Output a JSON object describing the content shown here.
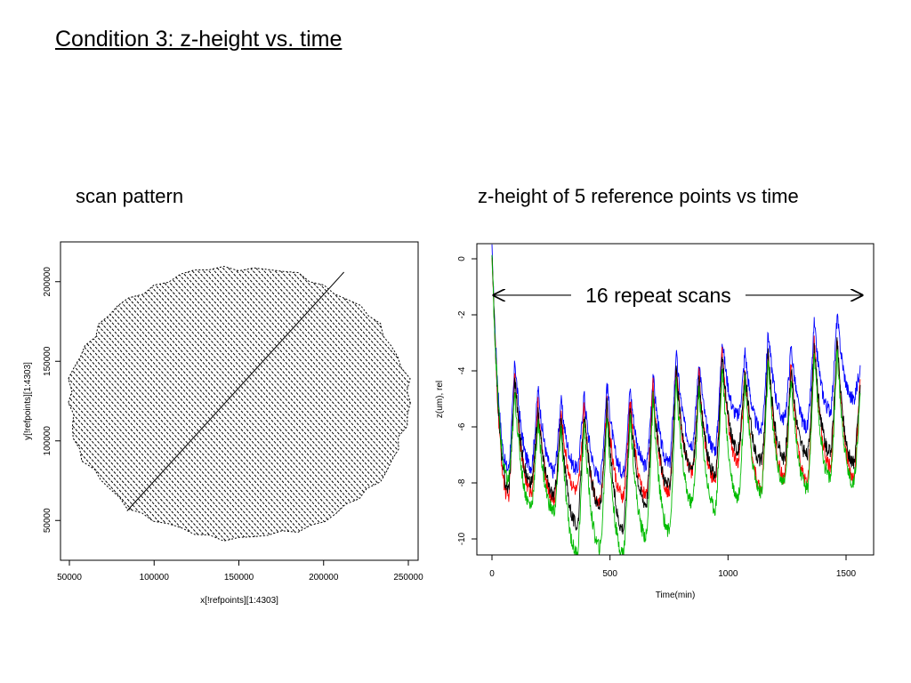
{
  "slide": {
    "title": "Condition 3: z-height vs. time"
  },
  "chart_data": [
    {
      "type": "scatter",
      "title": "scan pattern",
      "xlabel": "x[!refpoints][1:4303]",
      "ylabel": "y[!refpoints][1:4303]",
      "xlim": [
        50000,
        250000
      ],
      "ylim": [
        25000,
        225000
      ],
      "xticks": [
        50000,
        100000,
        150000,
        200000,
        250000
      ],
      "yticks": [
        50000,
        100000,
        150000,
        200000
      ],
      "grid": false,
      "description_points": "dense diagonal raster scan filling a disc; one long diagonal line connects the reference points",
      "boundary": {
        "center": [
          150000,
          124000
        ],
        "radius": 100000
      },
      "reference_line": {
        "x": [
          84000,
          212000
        ],
        "y": [
          56000,
          206000
        ]
      }
    },
    {
      "type": "line",
      "title": "z-height of 5 reference points vs time",
      "xlabel": "Time(min)",
      "ylabel": "z(um), rel",
      "xlim": [
        -60,
        1610
      ],
      "ylim": [
        -10.5,
        0.5
      ],
      "xticks": [
        0,
        500,
        1000,
        1500
      ],
      "yticks": [
        0,
        -2,
        -4,
        -6,
        -8,
        -10
      ],
      "grid": false,
      "annotation": {
        "text": "16 repeat scans",
        "arrow_from": 0,
        "arrow_to": 1560,
        "y": -1.3
      },
      "peak_times": [
        0,
        97,
        195,
        292,
        390,
        487,
        585,
        682,
        780,
        877,
        975,
        1072,
        1170,
        1267,
        1365,
        1462,
        1560
      ],
      "series": [
        {
          "color": "#0000ff",
          "peaks": [
            0.3,
            -3.6,
            -4.6,
            -5.0,
            -4.8,
            -4.4,
            -4.6,
            -4.1,
            -3.3,
            -3.6,
            -2.8,
            -3.3,
            -2.6,
            -3.1,
            -2.3,
            -2.0,
            -3.8
          ],
          "troughs": [
            -7.5,
            -7.4,
            -7.6,
            -7.5,
            -7.8,
            -7.6,
            -7.4,
            -7.3,
            -6.6,
            -6.8,
            -5.6,
            -6.1,
            -5.7,
            -6.0,
            -5.4,
            -5.0
          ]
        },
        {
          "color": "#ff0000",
          "peaks": [
            0.25,
            -4.0,
            -5.2,
            -5.5,
            -5.3,
            -5.0,
            -5.0,
            -4.5,
            -3.8,
            -4.1,
            -3.3,
            -3.8,
            -3.2,
            -3.7,
            -2.9,
            -2.7,
            -4.3
          ],
          "troughs": [
            -8.5,
            -8.3,
            -8.6,
            -8.3,
            -8.7,
            -8.5,
            -8.4,
            -8.3,
            -7.6,
            -7.9,
            -7.2,
            -8.2,
            -7.8,
            -8.0,
            -7.4,
            -7.8
          ]
        },
        {
          "color": "#000000",
          "peaks": [
            0.2,
            -4.2,
            -5.4,
            -5.7,
            -5.5,
            -5.2,
            -5.2,
            -4.7,
            -4.0,
            -4.3,
            -3.5,
            -4.0,
            -3.4,
            -3.9,
            -3.1,
            -2.9,
            -4.5
          ],
          "troughs": [
            -8.2,
            -8.0,
            -8.4,
            -9.5,
            -8.8,
            -9.6,
            -8.7,
            -8.1,
            -7.5,
            -7.7,
            -6.8,
            -7.2,
            -7.1,
            -7.0,
            -6.9,
            -7.3
          ]
        },
        {
          "color": "#00bb00",
          "peaks": [
            0.1,
            -4.8,
            -5.8,
            -6.0,
            -5.8,
            -5.5,
            -5.5,
            -5.0,
            -4.3,
            -4.6,
            -3.8,
            -4.3,
            -3.7,
            -4.2,
            -3.4,
            -3.2,
            -4.8
          ],
          "troughs": [
            -7.9,
            -8.8,
            -9.0,
            -10.5,
            -10.3,
            -10.5,
            -9.9,
            -9.7,
            -8.7,
            -8.9,
            -8.5,
            -8.3,
            -8.0,
            -8.2,
            -7.8,
            -8.0
          ]
        }
      ]
    }
  ]
}
